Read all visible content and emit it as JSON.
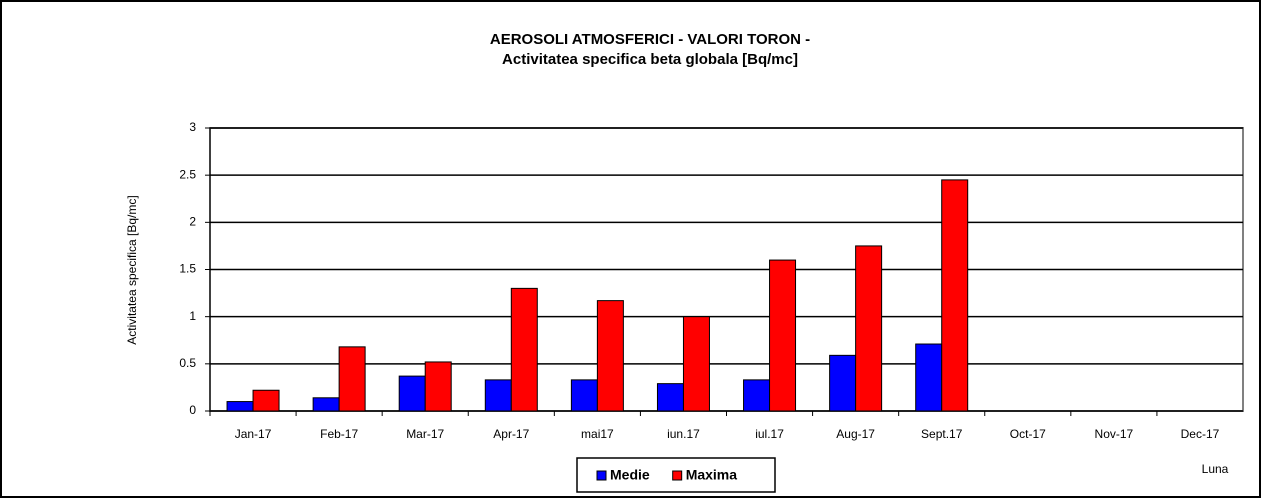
{
  "chart_data": {
    "type": "bar",
    "title": "AEROSOLI ATMOSFERICI - VALORI TORON -",
    "subtitle": "Activitatea specifica beta globala [Bq/mc]",
    "y_label": "Activitatea specifica [Bq/mc]",
    "x_label": "Luna",
    "categories": [
      "Jan-17",
      "Feb-17",
      "Mar-17",
      "Apr-17",
      "mai17",
      "iun.17",
      "iul.17",
      "Aug-17",
      "Sept.17",
      "Oct-17",
      "Nov-17",
      "Dec-17"
    ],
    "series": [
      {
        "name": "Medie",
        "color": "#0000ff",
        "values": [
          0.1,
          0.14,
          0.37,
          0.33,
          0.33,
          0.29,
          0.33,
          0.59,
          0.71,
          null,
          null,
          null
        ]
      },
      {
        "name": "Maxima",
        "color": "#ff0000",
        "values": [
          0.22,
          0.68,
          0.52,
          1.3,
          1.17,
          1.0,
          1.6,
          1.75,
          2.45,
          null,
          null,
          null
        ]
      }
    ],
    "ylim": [
      0,
      3
    ],
    "yticks": [
      0,
      0.5,
      1,
      1.5,
      2,
      2.5,
      3
    ],
    "grid": true,
    "legend": "bottom"
  }
}
